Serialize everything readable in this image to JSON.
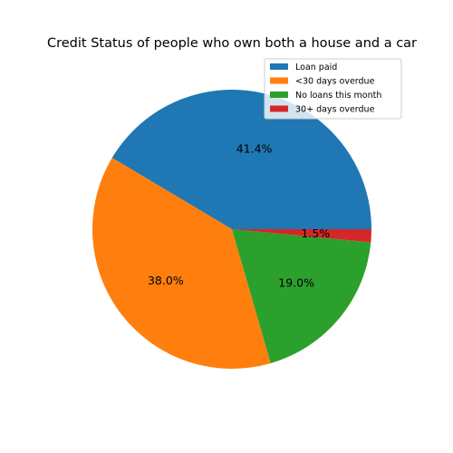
{
  "chart_data": {
    "type": "pie",
    "title": "Credit Status of people who own both a house and a car",
    "slices": [
      {
        "label": "Loan paid",
        "value": 41.4,
        "display": "41.4%",
        "color": "#1f77b4"
      },
      {
        "label": "<30 days overdue",
        "value": 38.0,
        "display": "38.0%",
        "color": "#ff7f0e"
      },
      {
        "label": "No loans this month",
        "value": 19.0,
        "display": "19.0%",
        "color": "#2ca02c"
      },
      {
        "label": "30+ days overdue",
        "value": 1.5,
        "display": "1.5%",
        "color": "#d62728"
      }
    ],
    "start_angle_deg": 0,
    "direction": "counterclockwise",
    "legend": {
      "position": "top-right"
    }
  }
}
